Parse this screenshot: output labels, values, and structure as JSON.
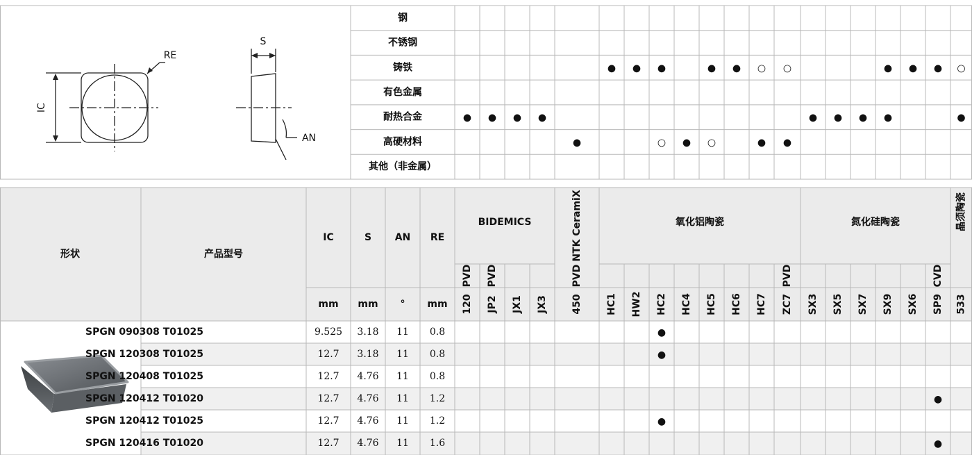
{
  "diagram": {
    "labels": {
      "re": "RE",
      "s": "S",
      "ic": "IC",
      "an": "AN"
    }
  },
  "materials": [
    {
      "name": "钢",
      "marks": [
        null,
        null,
        null,
        null,
        null,
        null,
        null,
        null,
        null,
        null,
        null,
        null,
        null,
        null,
        null,
        null,
        null,
        null,
        null,
        null
      ]
    },
    {
      "name": "不锈钢",
      "marks": [
        null,
        null,
        null,
        null,
        null,
        null,
        null,
        null,
        null,
        null,
        null,
        null,
        null,
        null,
        null,
        null,
        null,
        null,
        null,
        null
      ]
    },
    {
      "name": "铸铁",
      "marks": [
        null,
        null,
        null,
        null,
        null,
        "●",
        "●",
        "●",
        null,
        "●",
        "●",
        "○",
        "○",
        null,
        null,
        null,
        "●",
        "●",
        "●",
        "○"
      ]
    },
    {
      "name": "有色金属",
      "marks": [
        null,
        null,
        null,
        null,
        null,
        null,
        null,
        null,
        null,
        null,
        null,
        null,
        null,
        null,
        null,
        null,
        null,
        null,
        null,
        null
      ]
    },
    {
      "name": "耐热合金",
      "marks": [
        "●",
        "●",
        "●",
        "●",
        null,
        null,
        null,
        null,
        null,
        null,
        null,
        null,
        null,
        "●",
        "●",
        "●",
        "●",
        null,
        null,
        "●"
      ]
    },
    {
      "name": "高硬材料",
      "marks": [
        null,
        null,
        null,
        null,
        "●",
        null,
        null,
        "○",
        "●",
        "○",
        null,
        "●",
        "●",
        null,
        null,
        null,
        null,
        null,
        null,
        null
      ]
    },
    {
      "name": "其他（非金属）",
      "marks": [
        null,
        null,
        null,
        null,
        null,
        null,
        null,
        null,
        null,
        null,
        null,
        null,
        null,
        null,
        null,
        null,
        null,
        null,
        null,
        null
      ]
    }
  ],
  "header": {
    "shape": "形状",
    "product": "产品型号",
    "dims": [
      {
        "name": "IC",
        "unit": "mm"
      },
      {
        "name": "S",
        "unit": "mm"
      },
      {
        "name": "AN",
        "unit": "°"
      },
      {
        "name": "RE",
        "unit": "mm"
      }
    ]
  },
  "groups": [
    {
      "name": "BIDEMICS",
      "grades": [
        {
          "name": "120",
          "coating": "PVD"
        },
        {
          "name": "JP2",
          "coating": "PVD"
        },
        {
          "name": "JX1",
          "coating": null
        },
        {
          "name": "JX3",
          "coating": null
        }
      ]
    },
    {
      "name": "NTK CeramiX",
      "grades": [
        {
          "name": "450",
          "coating": "PVD"
        }
      ]
    },
    {
      "name": "氧化铝陶瓷",
      "grades": [
        {
          "name": "HC1",
          "coating": null
        },
        {
          "name": "HW2",
          "coating": null
        },
        {
          "name": "HC2",
          "coating": null
        },
        {
          "name": "HC4",
          "coating": null
        },
        {
          "name": "HC5",
          "coating": null
        },
        {
          "name": "HC6",
          "coating": null
        },
        {
          "name": "HC7",
          "coating": null
        },
        {
          "name": "ZC7",
          "coating": "PVD"
        }
      ]
    },
    {
      "name": "氮化硅陶瓷",
      "grades": [
        {
          "name": "SX3",
          "coating": null
        },
        {
          "name": "SX5",
          "coating": null
        },
        {
          "name": "SX7",
          "coating": null
        },
        {
          "name": "SX9",
          "coating": null
        },
        {
          "name": "SX6",
          "coating": null
        },
        {
          "name": "SP9",
          "coating": "CVD"
        }
      ]
    },
    {
      "name": "晶须陶瓷",
      "grades": [
        {
          "name": "533",
          "coating": null
        }
      ]
    }
  ],
  "products": [
    {
      "model": "SPGN 090308 T01025",
      "dims": [
        9.525,
        3.18,
        11,
        0.8
      ],
      "marks": [
        null,
        null,
        null,
        null,
        null,
        null,
        null,
        {
          "symbol": "●",
          "color": "#000000"
        },
        null,
        null,
        null,
        null,
        null,
        null,
        null,
        null,
        null,
        null,
        null,
        null
      ]
    },
    {
      "model": "SPGN 120308 T01025",
      "dims": [
        12.7,
        3.18,
        11,
        0.8
      ],
      "marks": [
        null,
        null,
        null,
        null,
        null,
        null,
        null,
        {
          "symbol": "●",
          "color": "#000000"
        },
        null,
        null,
        null,
        null,
        null,
        null,
        null,
        null,
        null,
        null,
        null,
        null
      ]
    },
    {
      "model": "SPGN 120408 T01025",
      "dims": [
        12.7,
        4.76,
        11,
        0.8
      ],
      "marks": [
        null,
        null,
        null,
        null,
        null,
        null,
        null,
        null,
        null,
        null,
        null,
        null,
        null,
        null,
        null,
        null,
        null,
        null,
        null,
        null
      ]
    },
    {
      "model": "SPGN 120412 T01020",
      "dims": [
        12.7,
        4.76,
        11,
        1.2
      ],
      "marks": [
        null,
        null,
        null,
        null,
        null,
        null,
        null,
        null,
        null,
        null,
        null,
        null,
        null,
        null,
        null,
        null,
        null,
        null,
        {
          "symbol": "●",
          "color": "#e3001b"
        },
        null
      ]
    },
    {
      "model": "SPGN 120412 T01025",
      "dims": [
        12.7,
        4.76,
        11,
        1.2
      ],
      "marks": [
        null,
        null,
        null,
        null,
        null,
        null,
        null,
        {
          "symbol": "●",
          "color": "#000000"
        },
        null,
        null,
        null,
        null,
        null,
        null,
        null,
        null,
        null,
        null,
        null,
        null
      ]
    },
    {
      "model": "SPGN 120416 T01020",
      "dims": [
        12.7,
        4.76,
        11,
        1.6
      ],
      "marks": [
        null,
        null,
        null,
        null,
        null,
        null,
        null,
        null,
        null,
        null,
        null,
        null,
        null,
        null,
        null,
        null,
        null,
        null,
        {
          "symbol": "●",
          "color": "#e3001b"
        },
        null
      ]
    }
  ]
}
